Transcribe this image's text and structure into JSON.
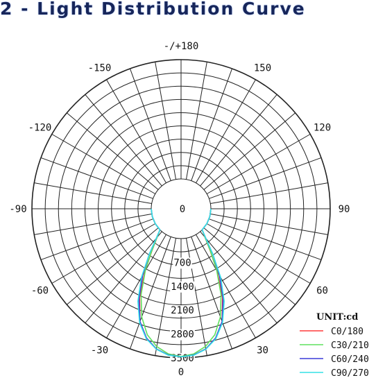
{
  "title": "2 - Light Distribution Curve",
  "chart_data": {
    "type": "polar",
    "unit_label": "UNIT:cd",
    "radial_ticks": [
      "0",
      "700",
      "1400",
      "2100",
      "2800",
      "3500"
    ],
    "r_max": 3500,
    "angle_labels": [
      {
        "text": "-/+180",
        "angle": 180
      },
      {
        "text": "150",
        "angle": 150
      },
      {
        "text": "-150",
        "angle": -150
      },
      {
        "text": "120",
        "angle": 120
      },
      {
        "text": "-120",
        "angle": -120
      },
      {
        "text": "90",
        "angle": 90
      },
      {
        "text": "-90",
        "angle": -90
      },
      {
        "text": "60",
        "angle": 60
      },
      {
        "text": "-60",
        "angle": -60
      },
      {
        "text": "30",
        "angle": 30
      },
      {
        "text": "-30",
        "angle": -30
      },
      {
        "text": "0",
        "angle": 0
      }
    ],
    "grid": true,
    "legend_position": "bottom-right",
    "angles": [
      -90,
      -75,
      -60,
      -45,
      -35,
      -30,
      -25,
      -20,
      -15,
      -10,
      -5,
      0,
      5,
      10,
      15,
      20,
      25,
      30,
      35,
      45,
      60,
      75,
      90
    ],
    "series": [
      {
        "name": "C0/180",
        "color": "#ff3b3b",
        "values": [
          0,
          0,
          0,
          0,
          600,
          1250,
          2000,
          2650,
          3050,
          3300,
          3430,
          3470,
          3430,
          3300,
          3050,
          2650,
          2000,
          1250,
          600,
          0,
          0,
          0,
          0
        ]
      },
      {
        "name": "C30/210",
        "color": "#5ee05e",
        "values": [
          0,
          0,
          0,
          0,
          620,
          1220,
          1900,
          2500,
          2950,
          3230,
          3400,
          3460,
          3400,
          3230,
          2950,
          2500,
          1900,
          1220,
          620,
          0,
          0,
          0,
          0
        ]
      },
      {
        "name": "C60/240",
        "color": "#3a3ad8",
        "values": [
          0,
          0,
          0,
          0,
          750,
          1380,
          2050,
          2650,
          3050,
          3300,
          3430,
          3470,
          3430,
          3300,
          3050,
          2650,
          2050,
          1380,
          750,
          0,
          0,
          0,
          0
        ]
      },
      {
        "name": "C90/270",
        "color": "#35e0e6",
        "values": [
          0,
          0,
          0,
          0,
          750,
          1450,
          2120,
          2680,
          3070,
          3310,
          3440,
          3470,
          3440,
          3310,
          3070,
          2680,
          2120,
          1450,
          750,
          0,
          0,
          0,
          0
        ]
      }
    ]
  }
}
